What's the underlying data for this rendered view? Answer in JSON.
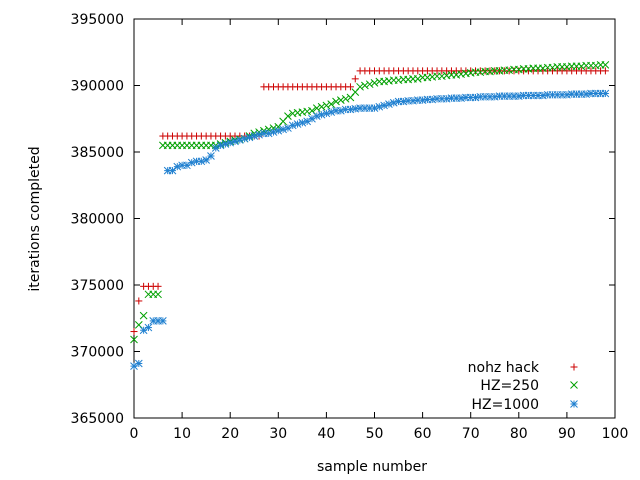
{
  "chart_data": {
    "type": "scatter",
    "xlabel": "sample number",
    "ylabel": "iterations completed",
    "xlim": [
      0,
      100
    ],
    "ylim": [
      365000,
      395000
    ],
    "x_ticks": [
      "0",
      "10",
      "20",
      "30",
      "40",
      "50",
      "60",
      "70",
      "80",
      "90",
      "100"
    ],
    "y_ticks": [
      "365000",
      "370000",
      "375000",
      "380000",
      "385000",
      "390000",
      "395000"
    ],
    "grid": false,
    "legend_position": "bottom-right",
    "series": [
      {
        "name": "nohz hack",
        "marker": "plus",
        "color": "#cc0000",
        "x": [
          0,
          1,
          2,
          3,
          4,
          5,
          6,
          7,
          8,
          9,
          10,
          11,
          12,
          13,
          14,
          15,
          16,
          17,
          18,
          19,
          20,
          21,
          22,
          23,
          24,
          25,
          26,
          27,
          28,
          29,
          30,
          31,
          32,
          33,
          34,
          35,
          36,
          37,
          38,
          39,
          40,
          41,
          42,
          43,
          44,
          45,
          46,
          47,
          48,
          49,
          50,
          51,
          52,
          53,
          54,
          55,
          56,
          57,
          58,
          59,
          60,
          61,
          62,
          63,
          64,
          65,
          66,
          67,
          68,
          69,
          70,
          71,
          72,
          73,
          74,
          75,
          76,
          77,
          78,
          79,
          80,
          81,
          82,
          83,
          84,
          85,
          86,
          87,
          88,
          89,
          90,
          91,
          92,
          93,
          94,
          95,
          96,
          97,
          98
        ],
        "y": [
          371500,
          373800,
          374900,
          374900,
          374900,
          374900,
          386200,
          386200,
          386200,
          386200,
          386200,
          386200,
          386200,
          386200,
          386200,
          386200,
          386200,
          386200,
          386200,
          386200,
          386200,
          386200,
          386200,
          386200,
          386200,
          386200,
          386200,
          389900,
          389900,
          389900,
          389900,
          389900,
          389900,
          389900,
          389900,
          389900,
          389900,
          389900,
          389900,
          389900,
          389900,
          389900,
          389900,
          389900,
          389900,
          389900,
          390500,
          391100,
          391100,
          391100,
          391100,
          391100,
          391100,
          391100,
          391100,
          391100,
          391100,
          391100,
          391100,
          391100,
          391100,
          391100,
          391100,
          391100,
          391100,
          391100,
          391100,
          391100,
          391100,
          391100,
          391100,
          391100,
          391100,
          391100,
          391100,
          391100,
          391100,
          391100,
          391100,
          391100,
          391100,
          391100,
          391100,
          391100,
          391100,
          391100,
          391100,
          391100,
          391100,
          391100,
          391100,
          391100,
          391100,
          391100,
          391100,
          391100,
          391100,
          391100,
          391100
        ]
      },
      {
        "name": "HZ=250",
        "marker": "cross",
        "color": "#00a000",
        "x": [
          0,
          1,
          2,
          3,
          4,
          5,
          6,
          7,
          8,
          9,
          10,
          11,
          12,
          13,
          14,
          15,
          16,
          17,
          18,
          19,
          20,
          21,
          22,
          23,
          24,
          25,
          26,
          27,
          28,
          29,
          30,
          31,
          32,
          33,
          34,
          35,
          36,
          37,
          38,
          39,
          40,
          41,
          42,
          43,
          44,
          45,
          46,
          47,
          48,
          49,
          50,
          51,
          52,
          53,
          54,
          55,
          56,
          57,
          58,
          59,
          60,
          61,
          62,
          63,
          64,
          65,
          66,
          67,
          68,
          69,
          70,
          71,
          72,
          73,
          74,
          75,
          76,
          77,
          78,
          79,
          80,
          81,
          82,
          83,
          84,
          85,
          86,
          87,
          88,
          89,
          90,
          91,
          92,
          93,
          94,
          95,
          96,
          97,
          98
        ],
        "y": [
          370900,
          372000,
          372700,
          374300,
          374300,
          374300,
          385500,
          385500,
          385500,
          385500,
          385500,
          385500,
          385500,
          385500,
          385500,
          385500,
          385500,
          385500,
          385600,
          385700,
          385800,
          385900,
          385950,
          386000,
          386200,
          386400,
          386500,
          386600,
          386700,
          386800,
          386900,
          387300,
          387700,
          387900,
          387950,
          388000,
          388050,
          388100,
          388300,
          388400,
          388500,
          388600,
          388800,
          388900,
          389000,
          389100,
          389500,
          389900,
          390000,
          390100,
          390200,
          390300,
          390300,
          390350,
          390400,
          390400,
          390450,
          390450,
          390500,
          390500,
          390600,
          390600,
          390650,
          390700,
          390700,
          390750,
          390800,
          390800,
          390850,
          390900,
          390950,
          391000,
          391000,
          391050,
          391050,
          391100,
          391100,
          391150,
          391150,
          391200,
          391200,
          391250,
          391250,
          391300,
          391300,
          391300,
          391350,
          391350,
          391400,
          391400,
          391400,
          391450,
          391450,
          391450,
          391500,
          391500,
          391500,
          391550,
          391550
        ]
      },
      {
        "name": "HZ=1000",
        "marker": "star",
        "color": "#2080d0",
        "x": [
          0,
          1,
          2,
          3,
          4,
          5,
          6,
          7,
          8,
          9,
          10,
          11,
          12,
          13,
          14,
          15,
          16,
          17,
          18,
          19,
          20,
          21,
          22,
          23,
          24,
          25,
          26,
          27,
          28,
          29,
          30,
          31,
          32,
          33,
          34,
          35,
          36,
          37,
          38,
          39,
          40,
          41,
          42,
          43,
          44,
          45,
          46,
          47,
          48,
          49,
          50,
          51,
          52,
          53,
          54,
          55,
          56,
          57,
          58,
          59,
          60,
          61,
          62,
          63,
          64,
          65,
          66,
          67,
          68,
          69,
          70,
          71,
          72,
          73,
          74,
          75,
          76,
          77,
          78,
          79,
          80,
          81,
          82,
          83,
          84,
          85,
          86,
          87,
          88,
          89,
          90,
          91,
          92,
          93,
          94,
          95,
          96,
          97,
          98
        ],
        "y": [
          368900,
          369100,
          371600,
          371800,
          372300,
          372300,
          372300,
          383600,
          383600,
          383900,
          384000,
          384000,
          384200,
          384300,
          384300,
          384400,
          384700,
          385300,
          385500,
          385600,
          385700,
          385800,
          385900,
          386000,
          386100,
          386200,
          386300,
          386400,
          386400,
          386500,
          386600,
          386700,
          386800,
          387000,
          387100,
          387200,
          387300,
          387500,
          387700,
          387800,
          387900,
          388000,
          388100,
          388100,
          388200,
          388200,
          388250,
          388300,
          388300,
          388300,
          388300,
          388400,
          388500,
          388600,
          388700,
          388800,
          388800,
          388850,
          388850,
          388900,
          388900,
          388950,
          388950,
          389000,
          389000,
          389000,
          389050,
          389050,
          389050,
          389100,
          389100,
          389100,
          389150,
          389150,
          389150,
          389150,
          389200,
          389200,
          389200,
          389200,
          389200,
          389250,
          389250,
          389250,
          389250,
          389250,
          389300,
          389300,
          389300,
          389300,
          389300,
          389350,
          389350,
          389350,
          389350,
          389400,
          389400,
          389400,
          389400
        ]
      }
    ]
  }
}
